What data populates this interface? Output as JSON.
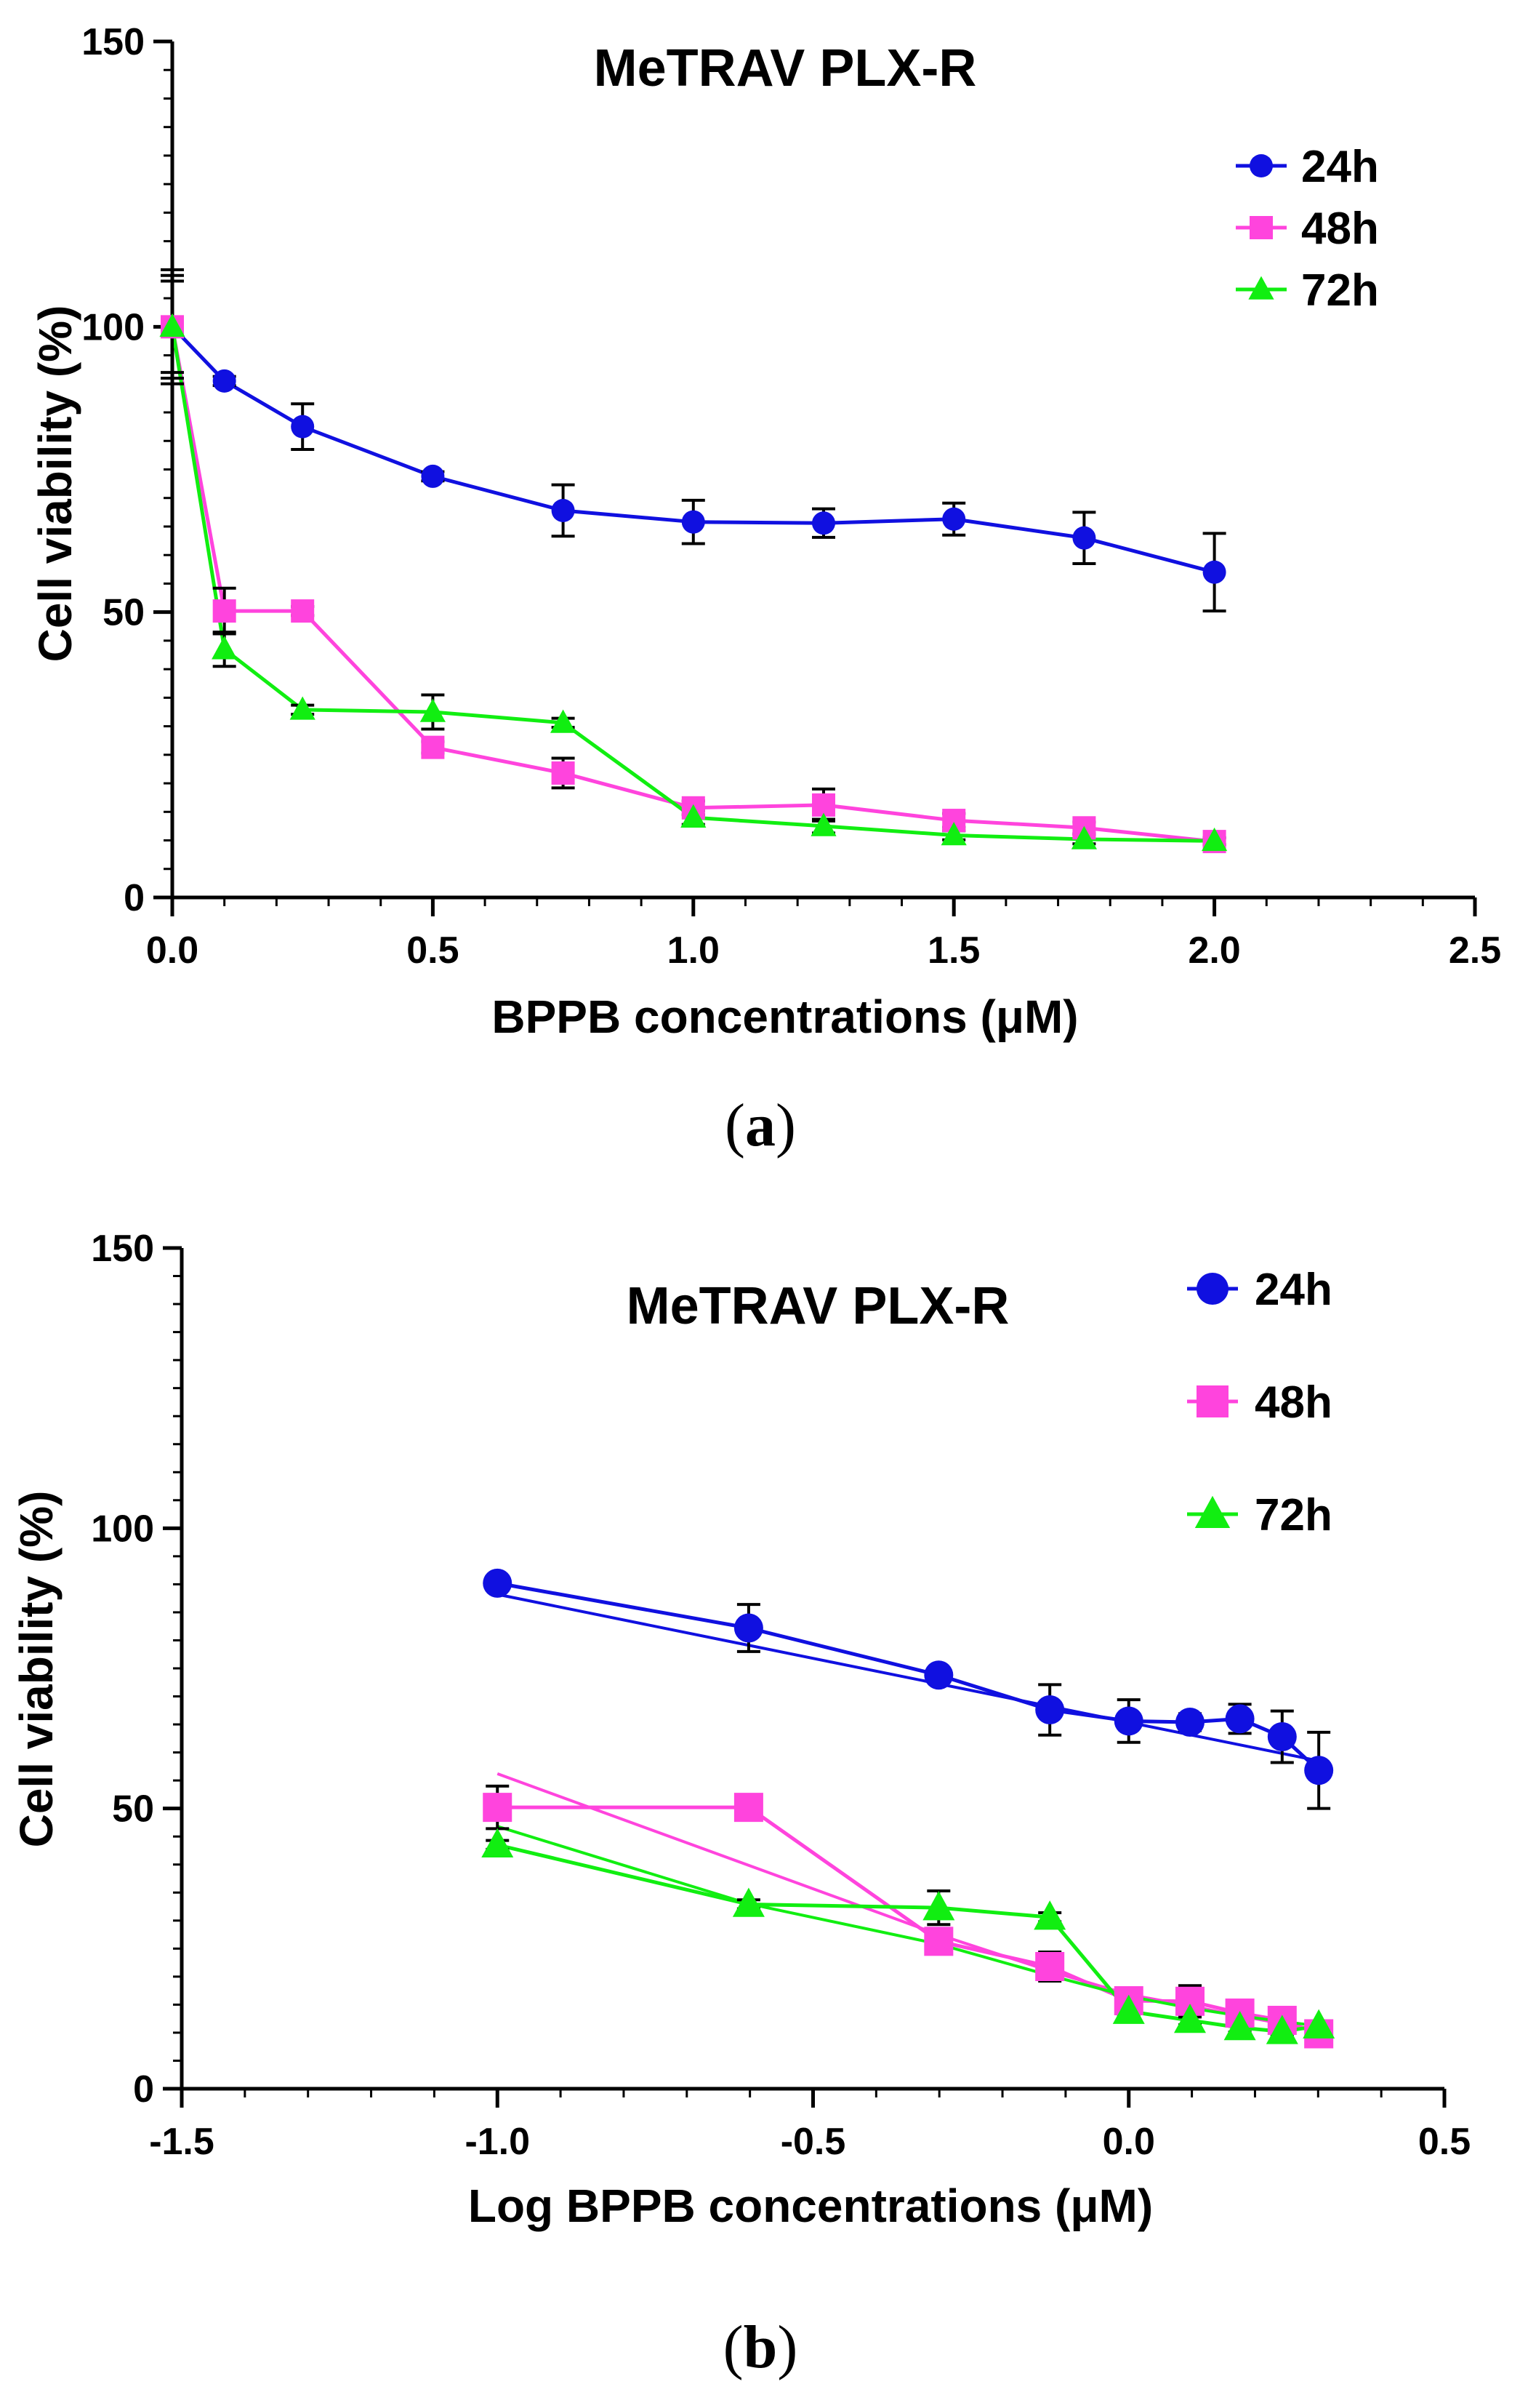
{
  "chart_data": [
    {
      "type": "line",
      "panel": "a",
      "panel_label": "(a)",
      "panel_letter": "a",
      "title": "MeTRAV PLX-R",
      "xlabel": "BPPB concentrations (μM)",
      "ylabel": "Cell viability (%)",
      "xlim": [
        0,
        2.5
      ],
      "ylim": [
        0,
        150
      ],
      "xticks": [
        0.0,
        0.5,
        1.0,
        1.5,
        2.0,
        2.5
      ],
      "xtick_labels": [
        "0.0",
        "0.5",
        "1.0",
        "1.5",
        "2.0",
        "2.5"
      ],
      "yticks": [
        0,
        50,
        100,
        150
      ],
      "ytick_labels": [
        "0",
        "50",
        "100",
        "150"
      ],
      "legend_position": "top-right",
      "series": [
        {
          "name": "24h",
          "color": "#1010e0",
          "marker": "circle",
          "x": [
            0,
            0.1,
            0.25,
            0.5,
            0.75,
            1.0,
            1.25,
            1.5,
            1.75,
            2.0
          ],
          "y": [
            100,
            90.5,
            82.5,
            73.8,
            67.8,
            65.8,
            65.6,
            66.3,
            63,
            57
          ],
          "err": [
            10,
            0.8,
            4,
            0.8,
            4.5,
            3.8,
            2.5,
            2.8,
            4.5,
            6.8
          ]
        },
        {
          "name": "48h",
          "color": "#ff44dd",
          "marker": "square",
          "x": [
            0,
            0.1,
            0.25,
            0.5,
            0.75,
            1.0,
            1.25,
            1.5,
            1.75,
            2.0
          ],
          "y": [
            100,
            50.2,
            50.2,
            26.3,
            21.8,
            15.7,
            16.2,
            13.5,
            12.2,
            9.8
          ],
          "err": [
            8,
            4,
            0.8,
            1,
            2.6,
            1.2,
            2.8,
            1.2,
            1,
            0.6
          ]
        },
        {
          "name": "72h",
          "color": "#11ee11",
          "marker": "triangle",
          "x": [
            0,
            0.1,
            0.25,
            0.5,
            0.75,
            1.0,
            1.25,
            1.5,
            1.75,
            2.0
          ],
          "y": [
            100,
            43.5,
            32.9,
            32.5,
            30.6,
            14.0,
            12.5,
            10.9,
            10.2,
            9.9
          ],
          "err": [
            9,
            3,
            0.8,
            3,
            0.8,
            1.2,
            1.2,
            0.8,
            0.8,
            0.6
          ]
        }
      ]
    },
    {
      "type": "line",
      "panel": "b",
      "panel_label": "(b)",
      "panel_letter": "b",
      "title": "MeTRAV PLX-R",
      "xlabel": "Log BPPB concentrations (μM)",
      "ylabel": "Cell viability (%)",
      "xlim": [
        -1.5,
        0.5
      ],
      "ylim": [
        0,
        150
      ],
      "xticks": [
        -1.5,
        -1.0,
        -0.5,
        0.0,
        0.5
      ],
      "xtick_labels": [
        "-1.5",
        "-1.0",
        "-0.5",
        "0.0",
        "0.5"
      ],
      "yticks": [
        0,
        50,
        100,
        150
      ],
      "ytick_labels": [
        "0",
        "50",
        "100",
        "150"
      ],
      "legend_position": "top-right",
      "series": [
        {
          "name": "24h",
          "color": "#1010e0",
          "marker": "circle",
          "x": [
            -1.0,
            -0.602,
            -0.301,
            -0.125,
            0.0,
            0.097,
            0.176,
            0.243,
            0.301
          ],
          "y": [
            90.2,
            82.2,
            73.8,
            67.6,
            65.6,
            65.4,
            66.0,
            62.8,
            56.8
          ],
          "err": [
            0.8,
            4.2,
            1,
            4.5,
            3.8,
            1.5,
            2.6,
            4.6,
            6.8
          ],
          "fit": {
            "x": [
              -1.0,
              0.301
            ],
            "y": [
              88.2,
              58.5
            ]
          }
        },
        {
          "name": "48h",
          "color": "#ff44dd",
          "marker": "square",
          "x": [
            -1.0,
            -0.602,
            -0.301,
            -0.125,
            0.0,
            0.097,
            0.176,
            0.243,
            0.301
          ],
          "y": [
            50.2,
            50.2,
            26.3,
            21.8,
            15.7,
            15.6,
            13.5,
            12.2,
            9.8
          ],
          "err": [
            3.8,
            0.8,
            1,
            2.6,
            1.2,
            2.8,
            1.2,
            1,
            0.6
          ],
          "fit": {
            "x": [
              -1.0,
              -0.301,
              -0.125,
              0.0,
              0.097,
              0.176,
              0.243,
              0.301
            ],
            "y": [
              56.2,
              27.5,
              21.0,
              16.8,
              14.8,
              13.0,
              11.6,
              10.4
            ]
          }
        },
        {
          "name": "72h",
          "color": "#11ee11",
          "marker": "triangle",
          "x": [
            -1.0,
            -0.602,
            -0.301,
            -0.125,
            0.0,
            0.097,
            0.176,
            0.243,
            0.301
          ],
          "y": [
            43.5,
            32.9,
            32.3,
            30.6,
            13.8,
            12.2,
            10.9,
            10.2,
            11.2
          ],
          "err": [
            0.8,
            0.8,
            3,
            0.8,
            0.8,
            0.8,
            0.8,
            0.6,
            0.6
          ],
          "fit": {
            "x": [
              -1.0,
              -0.602,
              -0.301,
              -0.125,
              0.0,
              0.097,
              0.176,
              0.243,
              0.301
            ],
            "y": [
              46.8,
              33.0,
              25.8,
              20.2,
              16.5,
              14.4,
              13.0,
              12.0,
              11.2
            ]
          }
        }
      ]
    }
  ]
}
